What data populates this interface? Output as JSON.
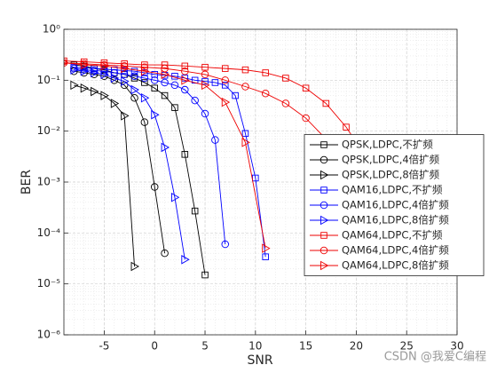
{
  "chart_data": {
    "type": "line",
    "xlabel": "SNR",
    "ylabel": "BER",
    "xlim": [
      -9,
      30
    ],
    "xticks": [
      -5,
      0,
      5,
      10,
      15,
      20,
      25,
      30
    ],
    "ylim": [
      1e-06,
      1
    ],
    "log_y": true,
    "yticks": [
      {
        "value": 1,
        "label": "10⁰"
      },
      {
        "value": 0.1,
        "label": "10⁻¹"
      },
      {
        "value": 0.01,
        "label": "10⁻²"
      },
      {
        "value": 0.001,
        "label": "10⁻³"
      },
      {
        "value": 0.0001,
        "label": "10⁻⁴"
      },
      {
        "value": 1e-05,
        "label": "10⁻⁵"
      },
      {
        "value": 1e-06,
        "label": "10⁻⁶"
      }
    ],
    "grid": true,
    "minor_grid": true,
    "legend": "east",
    "watermark": "CSDN @我爱C编程",
    "series": [
      {
        "name": "QPSK,LDPC,不扩频",
        "color": "#000000",
        "marker": "square",
        "x": [
          -8,
          -7,
          -6,
          -5,
          -4,
          -3,
          -2,
          -1,
          0,
          1,
          2,
          3,
          4,
          5
        ],
        "values": [
          0.2,
          0.19,
          0.17,
          0.16,
          0.14,
          0.13,
          0.11,
          0.09,
          0.07,
          0.05,
          0.029,
          0.0035,
          0.00027,
          1.5e-05
        ]
      },
      {
        "name": "QPSK,LDPC,4倍扩频",
        "color": "#000000",
        "marker": "circle",
        "x": [
          -8,
          -7,
          -6,
          -5,
          -4,
          -3,
          -2,
          -1,
          0,
          1
        ],
        "values": [
          0.15,
          0.14,
          0.13,
          0.12,
          0.1,
          0.08,
          0.045,
          0.015,
          0.0008,
          4e-05
        ]
      },
      {
        "name": "QPSK,LDPC,8倍扩频",
        "color": "#000000",
        "marker": "triangle",
        "x": [
          -8,
          -7,
          -6,
          -5,
          -4,
          -3,
          -2
        ],
        "values": [
          0.08,
          0.07,
          0.06,
          0.05,
          0.035,
          0.02,
          2.2e-05
        ]
      },
      {
        "name": "QAM16,LDPC,不扩频",
        "color": "#0000ff",
        "marker": "square",
        "x": [
          -8,
          -7,
          -6,
          -5,
          -4,
          -3,
          -2,
          -1,
          0,
          1,
          2,
          3,
          4,
          5,
          6,
          7,
          8,
          9,
          10,
          11
        ],
        "values": [
          0.18,
          0.175,
          0.17,
          0.165,
          0.16,
          0.155,
          0.15,
          0.14,
          0.13,
          0.125,
          0.12,
          0.11,
          0.1,
          0.095,
          0.09,
          0.08,
          0.05,
          0.009,
          0.0012,
          3.4e-05
        ]
      },
      {
        "name": "QAM16,LDPC,4倍扩频",
        "color": "#0000ff",
        "marker": "circle",
        "x": [
          -8,
          -7,
          -6,
          -5,
          -4,
          -3,
          -2,
          -1,
          0,
          1,
          2,
          3,
          4,
          5,
          6,
          7
        ],
        "values": [
          0.17,
          0.16,
          0.155,
          0.15,
          0.14,
          0.13,
          0.12,
          0.11,
          0.1,
          0.09,
          0.08,
          0.065,
          0.04,
          0.022,
          0.0067,
          6e-05
        ]
      },
      {
        "name": "QAM16,LDPC,8倍扩频",
        "color": "#0000ff",
        "marker": "triangle",
        "x": [
          -8,
          -7,
          -6,
          -5,
          -4,
          -3,
          -2,
          -1,
          0,
          1,
          2,
          3
        ],
        "values": [
          0.16,
          0.15,
          0.14,
          0.13,
          0.11,
          0.095,
          0.065,
          0.045,
          0.021,
          0.0048,
          0.0005,
          3e-05
        ]
      },
      {
        "name": "QAM64,LDPC,不扩频",
        "color": "#ee0000",
        "marker": "square",
        "x": [
          -9,
          -7,
          -5,
          -3,
          -1,
          1,
          3,
          5,
          7,
          9,
          11,
          13,
          15,
          17,
          19,
          21,
          23
        ],
        "values": [
          0.24,
          0.23,
          0.22,
          0.21,
          0.2,
          0.2,
          0.19,
          0.18,
          0.17,
          0.16,
          0.14,
          0.11,
          0.07,
          0.035,
          0.012,
          0.003,
          0.0006
        ]
      },
      {
        "name": "QAM64,LDPC,4倍扩频",
        "color": "#ee0000",
        "marker": "circle",
        "x": [
          -9,
          -7,
          -5,
          -3,
          -1,
          1,
          3,
          5,
          7,
          9,
          11,
          13,
          15,
          17,
          19,
          21
        ],
        "values": [
          0.22,
          0.21,
          0.2,
          0.19,
          0.18,
          0.17,
          0.15,
          0.13,
          0.1,
          0.075,
          0.055,
          0.035,
          0.018,
          0.007,
          0.002,
          0.0005
        ]
      },
      {
        "name": "QAM64,LDPC,8倍扩频",
        "color": "#ee0000",
        "marker": "triangle",
        "x": [
          -9,
          -7,
          -5,
          -3,
          -1,
          1,
          3,
          5,
          7,
          9,
          11
        ],
        "values": [
          0.22,
          0.2,
          0.19,
          0.17,
          0.15,
          0.13,
          0.1,
          0.08,
          0.037,
          0.006,
          5e-05
        ]
      }
    ]
  }
}
